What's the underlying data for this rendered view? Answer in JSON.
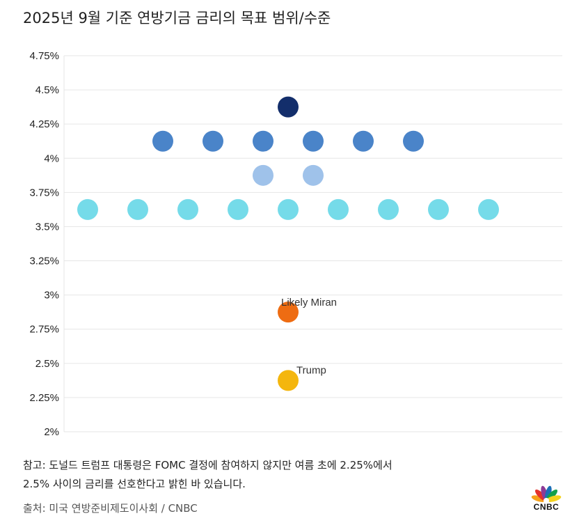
{
  "title": "2025년 9월 기준 연방기금 금리의 목표 범위/수준",
  "note_line1": "참고: 도널드 트럼프 대통령은 FOMC 결정에 참여하지 않지만 여름 초에 2.25%에서",
  "note_line2": "2.5% 사이의 금리를 선호한다고 밝힌 바 있습니다.",
  "source": "출처: 미국 연방준비제도이사회 / CNBC",
  "logo_text": "CNBC",
  "chart_data": {
    "type": "scatter",
    "title": "2025년 9월 기준 연방기금 금리의 목표 범위/수준",
    "ylim": [
      2.0,
      4.75
    ],
    "y_ticks": [
      "4.75%",
      "4.5%",
      "4.25%",
      "4%",
      "3.75%",
      "3.5%",
      "3.25%",
      "3%",
      "2.75%",
      "2.5%",
      "2.25%",
      "2%"
    ],
    "grid": true,
    "rows": [
      {
        "y": 4.375,
        "count": 1,
        "color": "#132e6b"
      },
      {
        "y": 4.125,
        "count": 6,
        "color": "#4a84c9"
      },
      {
        "y": 3.875,
        "count": 2,
        "color": "#9fc2ea"
      },
      {
        "y": 3.625,
        "count": 9,
        "color": "#75dbe9"
      },
      {
        "y": 2.875,
        "count": 1,
        "color": "#ee6c12"
      },
      {
        "y": 2.375,
        "count": 1,
        "color": "#f4b60e"
      }
    ],
    "annotations": [
      {
        "text": "Likely Miran",
        "y": 2.875
      },
      {
        "text": "Trump",
        "y": 2.375
      }
    ]
  }
}
